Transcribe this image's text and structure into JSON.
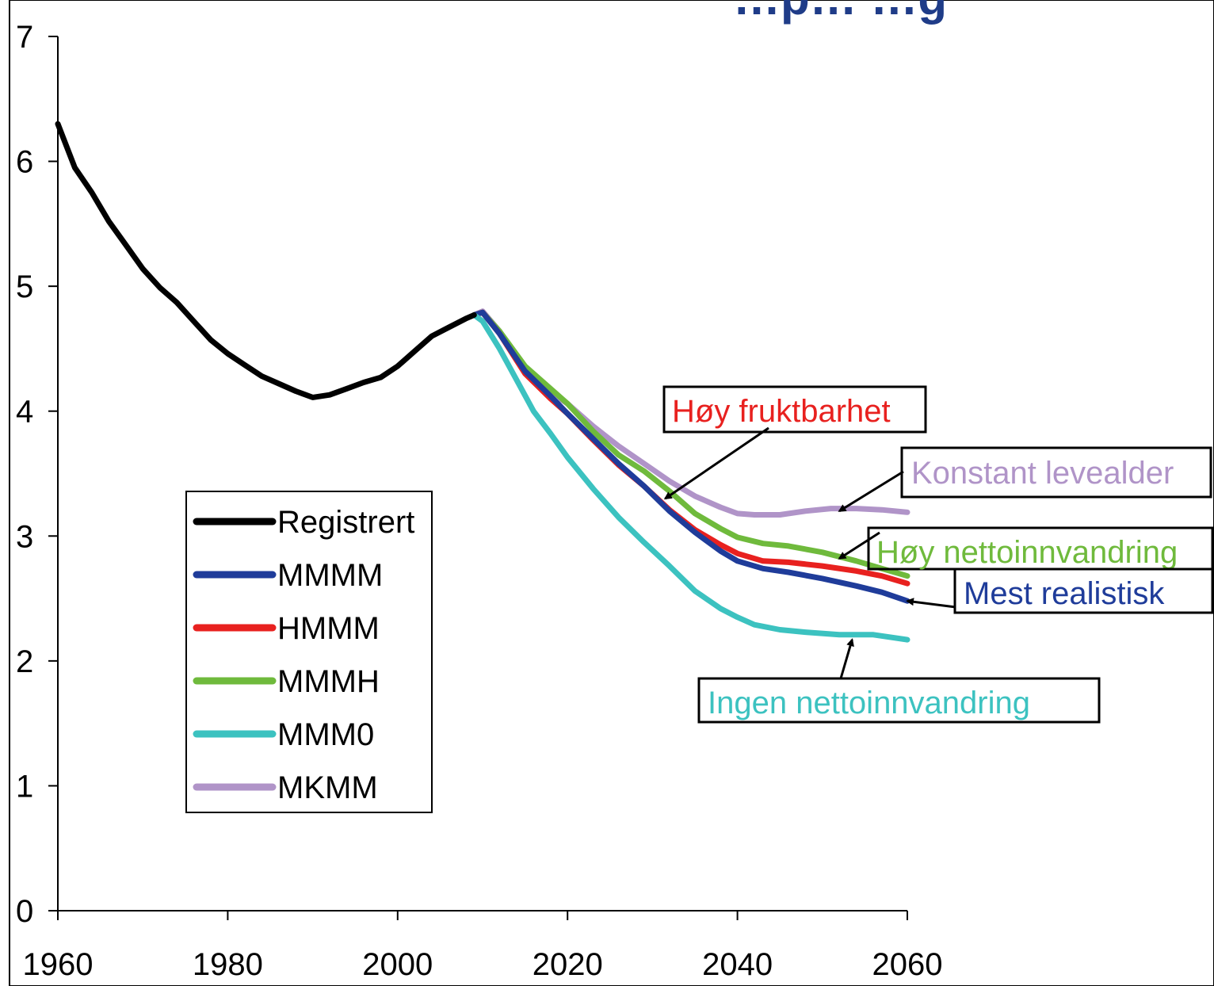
{
  "chart_data": {
    "type": "line",
    "title": "…p… …g",
    "xlabel": "",
    "ylabel": "",
    "xlim": [
      1960,
      2060
    ],
    "ylim": [
      0,
      7
    ],
    "x_ticks": [
      1960,
      1980,
      2000,
      2020,
      2040,
      2060
    ],
    "y_ticks": [
      0,
      1,
      2,
      3,
      4,
      5,
      6,
      7
    ],
    "grid": false,
    "legend_position": "left",
    "series": [
      {
        "name": "Registrert",
        "color": "#000000",
        "x": [
          1960,
          1962,
          1964,
          1966,
          1968,
          1970,
          1972,
          1974,
          1976,
          1978,
          1980,
          1982,
          1984,
          1986,
          1988,
          1990,
          1992,
          1994,
          1996,
          1998,
          2000,
          2002,
          2004,
          2006,
          2008,
          2009
        ],
        "y": [
          6.3,
          5.95,
          5.75,
          5.52,
          5.33,
          5.14,
          4.99,
          4.87,
          4.72,
          4.57,
          4.46,
          4.37,
          4.28,
          4.22,
          4.16,
          4.11,
          4.13,
          4.18,
          4.23,
          4.27,
          4.36,
          4.48,
          4.6,
          4.67,
          4.74,
          4.77
        ]
      },
      {
        "name": "MMMM",
        "color": "#1f3c9a",
        "x": [
          2009,
          2010,
          2012,
          2015,
          2018,
          2020,
          2023,
          2026,
          2029,
          2032,
          2035,
          2038,
          2040,
          2043,
          2046,
          2050,
          2054,
          2057,
          2060
        ],
        "y": [
          4.77,
          4.79,
          4.62,
          4.32,
          4.12,
          3.98,
          3.78,
          3.58,
          3.4,
          3.2,
          3.03,
          2.88,
          2.8,
          2.74,
          2.71,
          2.66,
          2.6,
          2.55,
          2.48
        ]
      },
      {
        "name": "HMMM",
        "color": "#e8211f",
        "x": [
          2009,
          2010,
          2012,
          2015,
          2018,
          2020,
          2023,
          2026,
          2029,
          2032,
          2035,
          2038,
          2040,
          2043,
          2046,
          2050,
          2054,
          2057,
          2060
        ],
        "y": [
          4.77,
          4.79,
          4.62,
          4.3,
          4.1,
          3.98,
          3.77,
          3.57,
          3.4,
          3.21,
          3.05,
          2.93,
          2.86,
          2.8,
          2.79,
          2.76,
          2.72,
          2.68,
          2.62
        ]
      },
      {
        "name": "MMMH",
        "color": "#6fba3c",
        "x": [
          2009,
          2010,
          2012,
          2015,
          2018,
          2020,
          2023,
          2026,
          2029,
          2032,
          2035,
          2038,
          2040,
          2043,
          2046,
          2050,
          2054,
          2057,
          2060
        ],
        "y": [
          4.77,
          4.79,
          4.64,
          4.36,
          4.18,
          4.06,
          3.84,
          3.65,
          3.52,
          3.36,
          3.18,
          3.06,
          2.99,
          2.94,
          2.92,
          2.87,
          2.8,
          2.74,
          2.68
        ]
      },
      {
        "name": "MMM0",
        "color": "#3cc2c0",
        "x": [
          2009,
          2010,
          2012,
          2014,
          2016,
          2018,
          2020,
          2023,
          2026,
          2029,
          2032,
          2035,
          2038,
          2040,
          2042,
          2045,
          2048,
          2052,
          2056,
          2060
        ],
        "y": [
          4.77,
          4.72,
          4.5,
          4.25,
          4.0,
          3.82,
          3.63,
          3.38,
          3.15,
          2.95,
          2.76,
          2.56,
          2.42,
          2.35,
          2.29,
          2.25,
          2.23,
          2.21,
          2.21,
          2.17
        ]
      },
      {
        "name": "MKMM",
        "color": "#b094c8",
        "x": [
          2009,
          2010,
          2012,
          2015,
          2018,
          2020,
          2023,
          2026,
          2029,
          2032,
          2035,
          2038,
          2040,
          2042,
          2045,
          2048,
          2051,
          2054,
          2057,
          2060
        ],
        "y": [
          4.77,
          4.8,
          4.64,
          4.33,
          4.15,
          4.06,
          3.88,
          3.72,
          3.58,
          3.44,
          3.32,
          3.23,
          3.18,
          3.17,
          3.17,
          3.2,
          3.22,
          3.22,
          3.21,
          3.19
        ]
      }
    ],
    "annotations": [
      {
        "key": "hoy_fruktbarhet",
        "text": "Høy fruktbarhet",
        "color": "#e8211f",
        "target_x": 2031.5,
        "target_y": 3.3
      },
      {
        "key": "konstant_levealder",
        "text": "Konstant levealder",
        "color": "#b094c8",
        "target_x": 2052,
        "target_y": 3.2
      },
      {
        "key": "hoy_nettoinnvandring",
        "text": "Høy nettoinnvandring",
        "color": "#6fba3c",
        "target_x": 2052,
        "target_y": 2.82
      },
      {
        "key": "mest_realistisk",
        "text": "Mest realistisk",
        "color": "#1f3c9a",
        "target_x": 2060,
        "target_y": 2.48
      },
      {
        "key": "ingen_nettoinnvandring",
        "text": "Ingen nettoinnvandring",
        "color": "#3cc2c0",
        "target_x": 2053.5,
        "target_y": 2.17
      }
    ]
  }
}
